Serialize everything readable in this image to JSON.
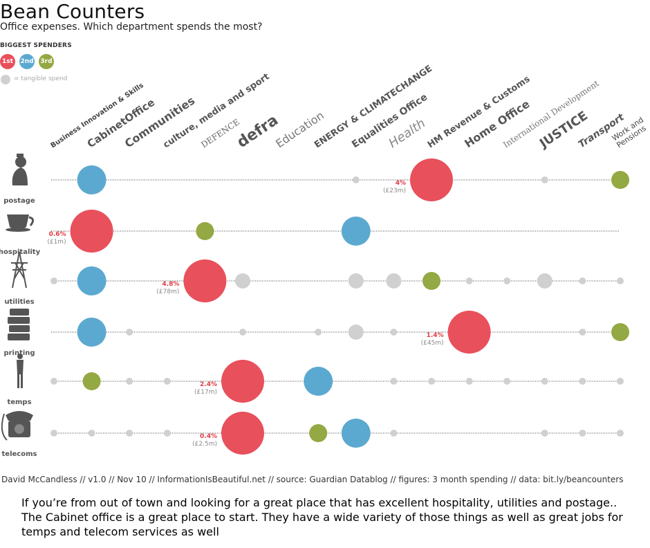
{
  "header": {
    "title": "Bean Counters",
    "subtitle": "Office expenses. Which department spends the most?"
  },
  "legend": {
    "title": "BIGGEST SPENDERS",
    "ranks": [
      {
        "label": "1st",
        "color": "#e8505b"
      },
      {
        "label": "2nd",
        "color": "#5ba9d0"
      },
      {
        "label": "3rd",
        "color": "#94a843"
      }
    ],
    "tangible_label": "= tangible spend",
    "tangible_color": "#d0d0d0"
  },
  "colors": {
    "first": "#e8505b",
    "second": "#5ba9d0",
    "third": "#94a843",
    "tangible": "#d0d0d0",
    "highlight_text": "#e03c47",
    "sub_text": "#888888"
  },
  "chart_data": {
    "type": "scatter",
    "departments": [
      "Business Innovation & Skills",
      "CabinetOffice",
      "Communities",
      "culture, media and sport",
      "DEFENCE",
      "defra",
      "Education",
      "ENERGY & CLIMATECHANGE",
      "Equalities Office",
      "Health",
      "HM Revenue & Customs",
      "Home Office",
      "International Development",
      "JUSTICE",
      "Transport",
      "Work and Pensions"
    ],
    "rows": [
      {
        "category": "postage",
        "icon": "queen-silhouette-icon",
        "dots": [
          {
            "dept": 1,
            "rank": 2
          },
          {
            "dept": 8,
            "rank": 0
          },
          {
            "dept": 10,
            "rank": 1
          },
          {
            "dept": 13,
            "rank": 0
          },
          {
            "dept": 15,
            "rank": 3
          }
        ],
        "top_pct": "4%",
        "top_amount": "(£23m)"
      },
      {
        "category": "hospitality",
        "icon": "teacup-icon",
        "dots": [
          {
            "dept": 1,
            "rank": 1
          },
          {
            "dept": 4,
            "rank": 3
          },
          {
            "dept": 8,
            "rank": 2
          }
        ],
        "top_pct": "0.6%",
        "top_amount": "(£1m)"
      },
      {
        "category": "utilities",
        "icon": "pylon-icon",
        "dots": [
          {
            "dept": 0,
            "rank": 0,
            "size": "s"
          },
          {
            "dept": 1,
            "rank": 2
          },
          {
            "dept": 4,
            "rank": 1
          },
          {
            "dept": 5,
            "rank": 0,
            "size": "m"
          },
          {
            "dept": 8,
            "rank": 0,
            "size": "m"
          },
          {
            "dept": 9,
            "rank": 0,
            "size": "m"
          },
          {
            "dept": 10,
            "rank": 3
          },
          {
            "dept": 11,
            "rank": 0,
            "size": "s"
          },
          {
            "dept": 12,
            "rank": 0,
            "size": "s"
          },
          {
            "dept": 13,
            "rank": 0,
            "size": "m"
          },
          {
            "dept": 14,
            "rank": 0,
            "size": "s"
          },
          {
            "dept": 15,
            "rank": 0,
            "size": "s"
          }
        ],
        "top_pct": "4.8%",
        "top_amount": "(£78m)"
      },
      {
        "category": "printing",
        "icon": "paper-stack-icon",
        "dots": [
          {
            "dept": 1,
            "rank": 2
          },
          {
            "dept": 2,
            "rank": 0,
            "size": "s"
          },
          {
            "dept": 5,
            "rank": 0,
            "size": "s"
          },
          {
            "dept": 7,
            "rank": 0,
            "size": "s"
          },
          {
            "dept": 8,
            "rank": 0,
            "size": "m"
          },
          {
            "dept": 9,
            "rank": 0,
            "size": "s"
          },
          {
            "dept": 11,
            "rank": 1
          },
          {
            "dept": 14,
            "rank": 0,
            "size": "s"
          },
          {
            "dept": 15,
            "rank": 3
          }
        ],
        "top_pct": "1.4%",
        "top_amount": "(£45m)"
      },
      {
        "category": "temps",
        "icon": "woman-silhouette-icon",
        "dots": [
          {
            "dept": 0,
            "rank": 0,
            "size": "s"
          },
          {
            "dept": 1,
            "rank": 3
          },
          {
            "dept": 2,
            "rank": 0,
            "size": "s"
          },
          {
            "dept": 3,
            "rank": 0,
            "size": "s"
          },
          {
            "dept": 5,
            "rank": 1
          },
          {
            "dept": 7,
            "rank": 2
          },
          {
            "dept": 9,
            "rank": 0,
            "size": "s"
          },
          {
            "dept": 10,
            "rank": 0,
            "size": "s"
          },
          {
            "dept": 11,
            "rank": 0,
            "size": "s"
          },
          {
            "dept": 12,
            "rank": 0,
            "size": "s"
          },
          {
            "dept": 13,
            "rank": 0,
            "size": "s"
          },
          {
            "dept": 14,
            "rank": 0,
            "size": "s"
          },
          {
            "dept": 15,
            "rank": 0,
            "size": "s"
          }
        ],
        "top_pct": "2.4%",
        "top_amount": "(£17m)"
      },
      {
        "category": "telecoms",
        "icon": "telephone-icon",
        "dots": [
          {
            "dept": 0,
            "rank": 0,
            "size": "s"
          },
          {
            "dept": 1,
            "rank": 0,
            "size": "s"
          },
          {
            "dept": 2,
            "rank": 0,
            "size": "s"
          },
          {
            "dept": 3,
            "rank": 0,
            "size": "s"
          },
          {
            "dept": 5,
            "rank": 1
          },
          {
            "dept": 7,
            "rank": 3
          },
          {
            "dept": 8,
            "rank": 2
          },
          {
            "dept": 9,
            "rank": 0,
            "size": "s"
          },
          {
            "dept": 13,
            "rank": 0,
            "size": "s"
          },
          {
            "dept": 14,
            "rank": 0,
            "size": "s"
          },
          {
            "dept": 15,
            "rank": 0,
            "size": "s"
          }
        ],
        "top_pct": "0.4%",
        "top_amount": "(£2.5m)"
      }
    ]
  },
  "footer": {
    "credit": "David McCandless // v1.0 // Nov 10 // InformationIsBeautiful.net // source: Guardian Datablog // figures: 3 month spending  // data: bit.ly/beancounters"
  },
  "note": {
    "text": "If you’re from out of town and looking for a great place that has excellent hospitality, utilities and postage.. The Cabinet office is a great place to start. They have a wide variety of those things as well as great jobs for temps and telecom services as well"
  }
}
